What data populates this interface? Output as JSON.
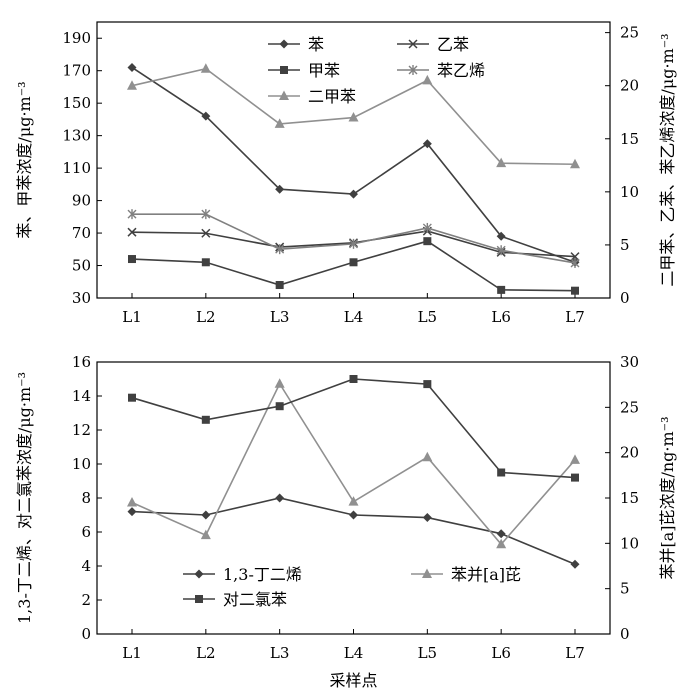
{
  "chart_data": [
    {
      "type": "line",
      "xlabel": "",
      "categories": [
        "L1",
        "L2",
        "L3",
        "L4",
        "L5",
        "L6",
        "L7"
      ],
      "ylabel": "苯、甲苯浓度/μg·m⁻³",
      "ylabel_right": "二甲苯、乙苯、苯乙烯浓度/μg·m⁻³",
      "ylim": [
        30,
        200
      ],
      "yticks": [
        "30",
        "50",
        "70",
        "90",
        "110",
        "130",
        "150",
        "170",
        "190"
      ],
      "ylim_right": [
        0,
        26
      ],
      "yticks_right": [
        "0",
        "5",
        "10",
        "15",
        "20",
        "25"
      ],
      "legend_position": "top",
      "series": [
        {
          "name": "苯",
          "axis": "left",
          "marker": "diamond",
          "color": "#404040",
          "values": [
            172,
            142,
            97,
            94,
            125,
            68,
            52
          ]
        },
        {
          "name": "甲苯",
          "axis": "left",
          "marker": "square",
          "color": "#404040",
          "values": [
            54,
            52,
            38,
            52,
            65,
            35,
            34.5
          ]
        },
        {
          "name": "二甲苯",
          "axis": "right",
          "marker": "triangle",
          "color": "#909090",
          "values": [
            20,
            21.6,
            16.4,
            17,
            20.5,
            12.7,
            12.6
          ]
        },
        {
          "name": "乙苯",
          "axis": "right",
          "marker": "x",
          "color": "#404040",
          "values": [
            6.2,
            6.1,
            4.8,
            5.2,
            6.3,
            4.3,
            3.9
          ]
        },
        {
          "name": "苯乙烯",
          "axis": "right",
          "marker": "asterisk",
          "color": "#808080",
          "values": [
            7.9,
            7.9,
            4.6,
            5.1,
            6.6,
            4.5,
            3.3
          ]
        }
      ]
    },
    {
      "type": "line",
      "xlabel": "采样点",
      "categories": [
        "L1",
        "L2",
        "L3",
        "L4",
        "L5",
        "L6",
        "L7"
      ],
      "ylabel": "1,3-丁二烯、对二氯苯浓度/μg·m⁻³",
      "ylabel_right": "苯并[a]芘浓度/ng·m⁻³",
      "ylim": [
        0,
        16
      ],
      "yticks": [
        "0",
        "2",
        "4",
        "6",
        "8",
        "10",
        "12",
        "14",
        "16"
      ],
      "ylim_right": [
        0,
        30
      ],
      "yticks_right": [
        "0",
        "5",
        "10",
        "15",
        "20",
        "25",
        "30"
      ],
      "legend_position": "bottom-left",
      "series": [
        {
          "name": "1,3-丁二烯",
          "axis": "left",
          "marker": "diamond",
          "color": "#404040",
          "values": [
            7.2,
            7.0,
            8.0,
            7.0,
            6.85,
            5.9,
            4.1
          ]
        },
        {
          "name": "苯并[a]芘",
          "axis": "right",
          "marker": "triangle",
          "color": "#909090",
          "values": [
            14.5,
            10.9,
            27.6,
            14.6,
            19.5,
            9.9,
            19.2
          ]
        },
        {
          "name": "对二氯苯",
          "axis": "left",
          "marker": "square",
          "color": "#404040",
          "values": [
            13.9,
            12.6,
            13.4,
            15.0,
            14.7,
            9.5,
            9.2
          ]
        }
      ]
    }
  ]
}
